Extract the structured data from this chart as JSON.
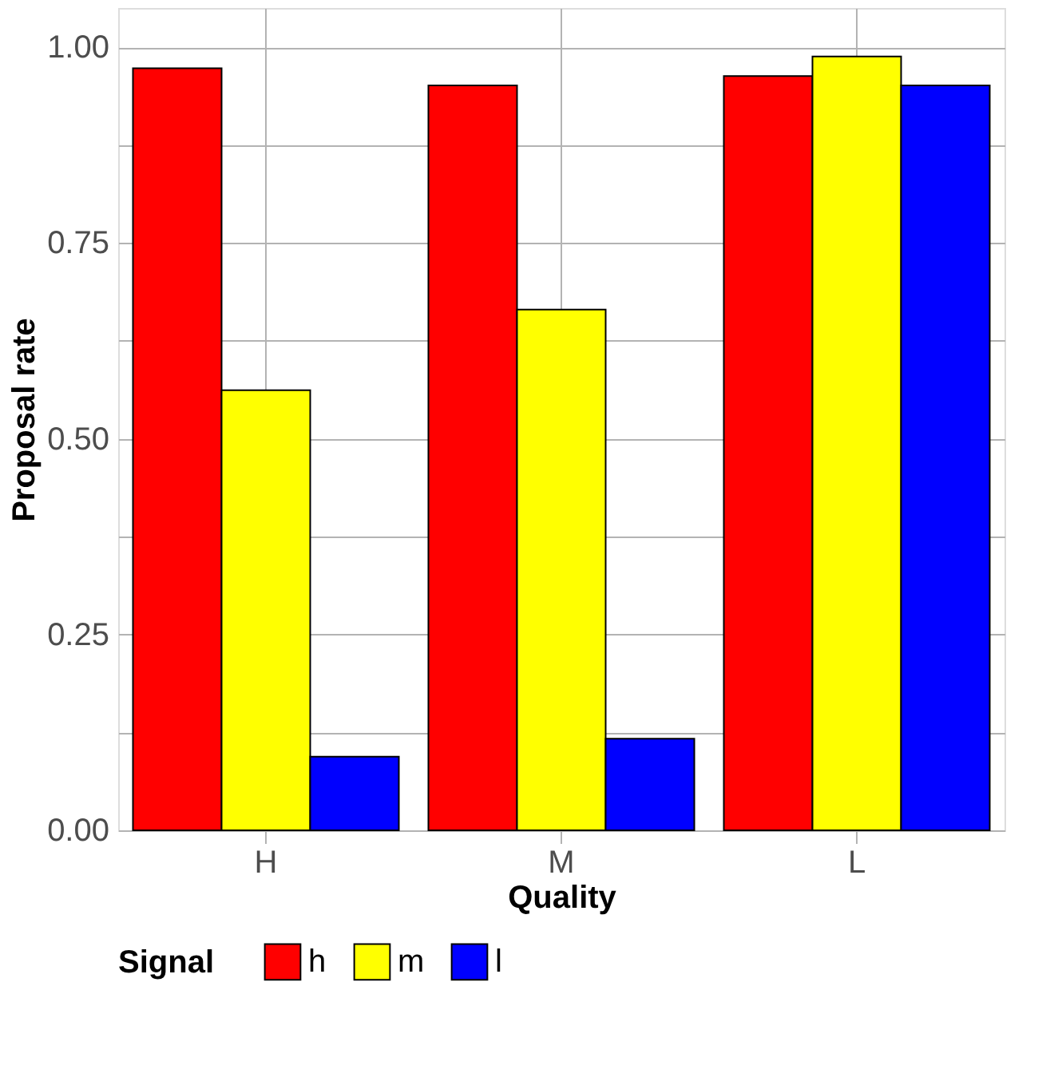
{
  "chart_data": {
    "type": "bar",
    "xlabel": "Quality",
    "ylabel": "Proposal rate",
    "legend_title": "Signal",
    "categories": [
      "H",
      "M",
      "L"
    ],
    "series": [
      {
        "name": "h",
        "color": "#ff0000",
        "values": [
          0.973,
          0.951,
          0.963
        ]
      },
      {
        "name": "m",
        "color": "#ffff00",
        "values": [
          0.562,
          0.665,
          0.988
        ]
      },
      {
        "name": "l",
        "color": "#0000ff",
        "values": [
          0.094,
          0.117,
          0.951
        ]
      }
    ],
    "ylim": [
      0,
      1.05
    ],
    "yticks": [
      {
        "value": 0,
        "label": "0.00"
      },
      {
        "value": 0.125,
        "label": null
      },
      {
        "value": 0.25,
        "label": "0.25"
      },
      {
        "value": 0.375,
        "label": null
      },
      {
        "value": 0.5,
        "label": "0.50"
      },
      {
        "value": 0.625,
        "label": null
      },
      {
        "value": 0.75,
        "label": "0.75"
      },
      {
        "value": 0.875,
        "label": null
      },
      {
        "value": 1,
        "label": "1.00"
      }
    ],
    "grid": true,
    "legend": "bottom"
  }
}
